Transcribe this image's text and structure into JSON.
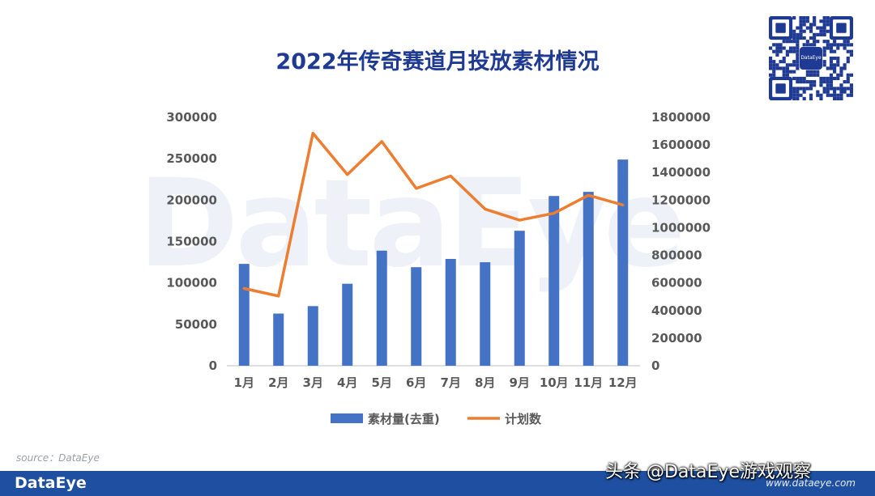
{
  "page": {
    "source_label": "source：DataEye",
    "footer_logo": "DataEye",
    "footer_url": "www.dataeye.com",
    "overlay_brand": "头条 @DataEye游戏观察",
    "background_watermark": "DataEye",
    "qr_label": "DataEye"
  },
  "chart_data": {
    "type": "bar",
    "title": "2022年传奇赛道月投放素材情况",
    "categories": [
      "1月",
      "2月",
      "3月",
      "4月",
      "5月",
      "6月",
      "7月",
      "8月",
      "9月",
      "10月",
      "11月",
      "12月"
    ],
    "series": [
      {
        "name": "素材量(去重)",
        "type": "bar",
        "axis": "left",
        "color": "#4472c4",
        "values": [
          123000,
          63000,
          72000,
          99000,
          139000,
          119000,
          129000,
          125000,
          163000,
          205000,
          210000,
          249000
        ]
      },
      {
        "name": "计划数",
        "type": "line",
        "axis": "right",
        "color": "#ed7d31",
        "values": [
          560000,
          505000,
          1685000,
          1385000,
          1625000,
          1285000,
          1375000,
          1135000,
          1055000,
          1105000,
          1235000,
          1165000
        ]
      }
    ],
    "y_left": {
      "range": [
        0,
        300000
      ],
      "ticks": [
        "0",
        "50000",
        "100000",
        "150000",
        "200000",
        "250000",
        "300000"
      ]
    },
    "y_right": {
      "range": [
        0,
        1800000
      ],
      "ticks": [
        "0",
        "200000",
        "400000",
        "600000",
        "800000",
        "1000000",
        "1200000",
        "1400000",
        "1600000",
        "1800000"
      ]
    },
    "grid": false,
    "legend_position": "bottom"
  }
}
